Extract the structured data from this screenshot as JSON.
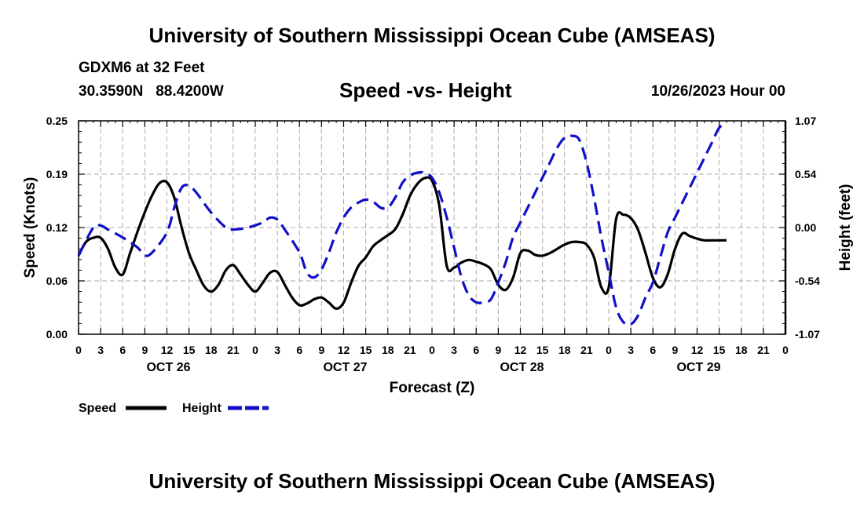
{
  "header": {
    "title": "University of Southern Mississippi Ocean Cube (AMSEAS)",
    "station": "GDXM6 at 32 Feet",
    "coords": "30.3590N   88.4200W",
    "chart_title": "Speed -vs- Height",
    "date": "10/26/2023 Hour 00"
  },
  "footer": {
    "title": "University of Southern Mississippi Ocean Cube (AMSEAS)"
  },
  "colors": {
    "speed": "#000000",
    "height": "#1010c8",
    "grid": "#aaaaaa"
  },
  "chart_data": {
    "type": "line",
    "title": "Speed -vs- Height",
    "xlabel": "Forecast (Z)",
    "ylabel": "Speed (Knots)",
    "y2label": "Height (feet)",
    "xlim": [
      0,
      96
    ],
    "ylim": [
      0,
      0.25
    ],
    "y2lim": [
      -1.07,
      1.07
    ],
    "yticks": [
      "0.00",
      "0.06",
      "0.12",
      "0.19",
      "0.25"
    ],
    "y2ticks": [
      "-1.07",
      "-0.54",
      "0.00",
      "0.54",
      "1.07"
    ],
    "xticks": [
      "0",
      "3",
      "6",
      "9",
      "12",
      "15",
      "18",
      "21",
      "0",
      "3",
      "6",
      "9",
      "12",
      "15",
      "18",
      "21",
      "0",
      "3",
      "6",
      "9",
      "12",
      "15",
      "18",
      "21",
      "0",
      "3",
      "6",
      "9",
      "12",
      "15",
      "18",
      "21",
      "0"
    ],
    "day_labels": [
      {
        "label": "OCT 26",
        "hour": 12
      },
      {
        "label": "OCT 27",
        "hour": 36
      },
      {
        "label": "OCT 28",
        "hour": 60
      },
      {
        "label": "OCT 29",
        "hour": 84
      }
    ],
    "grid": true,
    "legend": [
      {
        "name": "Speed",
        "style": "solid"
      },
      {
        "name": "Height",
        "style": "dashed"
      }
    ],
    "series": [
      {
        "name": "Speed",
        "axis": "left",
        "points": [
          [
            0,
            0.092
          ],
          [
            1,
            0.108
          ],
          [
            2,
            0.113
          ],
          [
            3,
            0.113
          ],
          [
            4,
            0.1
          ],
          [
            5,
            0.078
          ],
          [
            6,
            0.07
          ],
          [
            7,
            0.095
          ],
          [
            8,
            0.12
          ],
          [
            9,
            0.143
          ],
          [
            10,
            0.163
          ],
          [
            11,
            0.177
          ],
          [
            12,
            0.178
          ],
          [
            13,
            0.16
          ],
          [
            14,
            0.125
          ],
          [
            15,
            0.095
          ],
          [
            16,
            0.075
          ],
          [
            17,
            0.057
          ],
          [
            18,
            0.05
          ],
          [
            19,
            0.058
          ],
          [
            20,
            0.075
          ],
          [
            21,
            0.081
          ],
          [
            22,
            0.07
          ],
          [
            23,
            0.058
          ],
          [
            24,
            0.05
          ],
          [
            25,
            0.06
          ],
          [
            26,
            0.072
          ],
          [
            27,
            0.073
          ],
          [
            28,
            0.058
          ],
          [
            29,
            0.043
          ],
          [
            30,
            0.034
          ],
          [
            31,
            0.036
          ],
          [
            32,
            0.041
          ],
          [
            33,
            0.043
          ],
          [
            34,
            0.037
          ],
          [
            35,
            0.03
          ],
          [
            36,
            0.037
          ],
          [
            37,
            0.06
          ],
          [
            38,
            0.08
          ],
          [
            39,
            0.09
          ],
          [
            40,
            0.103
          ],
          [
            41,
            0.11
          ],
          [
            42,
            0.116
          ],
          [
            43,
            0.123
          ],
          [
            44,
            0.14
          ],
          [
            45,
            0.162
          ],
          [
            46,
            0.176
          ],
          [
            47,
            0.183
          ],
          [
            48,
            0.18
          ],
          [
            49,
            0.15
          ],
          [
            50,
            0.08
          ],
          [
            51,
            0.078
          ],
          [
            52,
            0.084
          ],
          [
            53,
            0.087
          ],
          [
            54,
            0.085
          ],
          [
            55,
            0.082
          ],
          [
            56,
            0.076
          ],
          [
            57,
            0.058
          ],
          [
            58,
            0.052
          ],
          [
            59,
            0.066
          ],
          [
            60,
            0.095
          ],
          [
            61,
            0.098
          ],
          [
            62,
            0.093
          ],
          [
            63,
            0.092
          ],
          [
            64,
            0.095
          ],
          [
            65,
            0.1
          ],
          [
            66,
            0.105
          ],
          [
            67,
            0.108
          ],
          [
            68,
            0.108
          ],
          [
            69,
            0.105
          ],
          [
            70,
            0.09
          ],
          [
            71,
            0.055
          ],
          [
            72,
            0.055
          ],
          [
            73,
            0.135
          ],
          [
            74,
            0.14
          ],
          [
            75,
            0.136
          ],
          [
            76,
            0.122
          ],
          [
            77,
            0.095
          ],
          [
            78,
            0.066
          ],
          [
            79,
            0.055
          ],
          [
            80,
            0.07
          ],
          [
            81,
            0.1
          ],
          [
            82,
            0.118
          ],
          [
            83,
            0.115
          ],
          [
            84,
            0.112
          ],
          [
            85,
            0.11
          ],
          [
            86,
            0.11
          ],
          [
            87,
            0.11
          ],
          [
            88,
            0.11
          ]
        ]
      },
      {
        "name": "Height",
        "axis": "right",
        "points": [
          [
            0,
            -0.28
          ],
          [
            2,
            0.0
          ],
          [
            3,
            0.02
          ],
          [
            4,
            -0.02
          ],
          [
            6,
            -0.1
          ],
          [
            8,
            -0.2
          ],
          [
            9,
            -0.28
          ],
          [
            10,
            -0.25
          ],
          [
            12,
            -0.05
          ],
          [
            13,
            0.2
          ],
          [
            14,
            0.4
          ],
          [
            15,
            0.42
          ],
          [
            16,
            0.35
          ],
          [
            18,
            0.15
          ],
          [
            20,
            0.0
          ],
          [
            21,
            -0.02
          ],
          [
            23,
            0.0
          ],
          [
            25,
            0.05
          ],
          [
            26,
            0.1
          ],
          [
            27,
            0.08
          ],
          [
            28,
            -0.02
          ],
          [
            30,
            -0.25
          ],
          [
            31,
            -0.45
          ],
          [
            32,
            -0.5
          ],
          [
            33,
            -0.42
          ],
          [
            34,
            -0.25
          ],
          [
            35,
            -0.05
          ],
          [
            36,
            0.1
          ],
          [
            37,
            0.2
          ],
          [
            38,
            0.25
          ],
          [
            39,
            0.28
          ],
          [
            40,
            0.26
          ],
          [
            41,
            0.2
          ],
          [
            42,
            0.2
          ],
          [
            43,
            0.3
          ],
          [
            44,
            0.45
          ],
          [
            45,
            0.52
          ],
          [
            46,
            0.55
          ],
          [
            47,
            0.55
          ],
          [
            48,
            0.5
          ],
          [
            49,
            0.35
          ],
          [
            50,
            0.1
          ],
          [
            51,
            -0.2
          ],
          [
            52,
            -0.5
          ],
          [
            53,
            -0.68
          ],
          [
            54,
            -0.75
          ],
          [
            55,
            -0.75
          ],
          [
            56,
            -0.72
          ],
          [
            57,
            -0.55
          ],
          [
            58,
            -0.35
          ],
          [
            59,
            -0.1
          ],
          [
            60,
            0.05
          ],
          [
            61,
            0.2
          ],
          [
            62,
            0.35
          ],
          [
            63,
            0.5
          ],
          [
            64,
            0.65
          ],
          [
            65,
            0.8
          ],
          [
            66,
            0.9
          ],
          [
            67,
            0.92
          ],
          [
            68,
            0.88
          ],
          [
            69,
            0.65
          ],
          [
            70,
            0.3
          ],
          [
            71,
            -0.1
          ],
          [
            72,
            -0.45
          ],
          [
            73,
            -0.8
          ],
          [
            74,
            -0.95
          ],
          [
            75,
            -0.97
          ],
          [
            76,
            -0.88
          ],
          [
            77,
            -0.7
          ],
          [
            78,
            -0.55
          ],
          [
            79,
            -0.3
          ],
          [
            80,
            -0.05
          ],
          [
            81,
            0.1
          ],
          [
            82,
            0.25
          ],
          [
            83,
            0.4
          ],
          [
            84,
            0.55
          ],
          [
            85,
            0.7
          ],
          [
            86,
            0.85
          ],
          [
            87,
            1.0
          ],
          [
            88,
            1.05
          ]
        ]
      }
    ]
  }
}
